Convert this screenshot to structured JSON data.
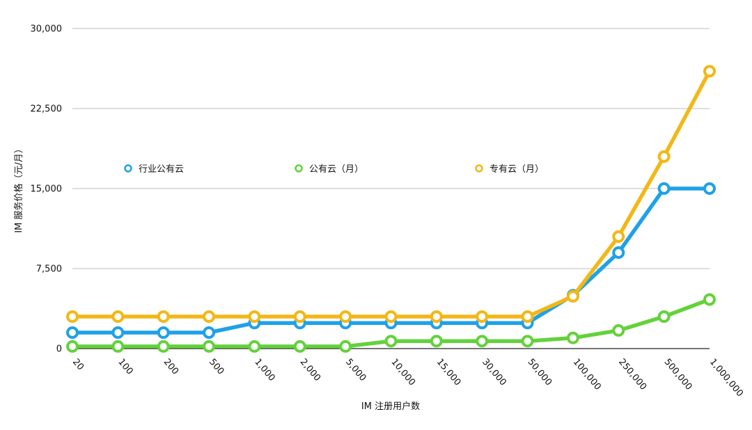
{
  "chart_data": {
    "type": "line",
    "title": "",
    "xlabel": "IM 注册用户数",
    "ylabel": "IM 服务价格（元/月）",
    "categories": [
      "20",
      "100",
      "200",
      "500",
      "1,000",
      "2,000",
      "5,000",
      "10,000",
      "15,000",
      "30,000",
      "50,000",
      "100,000",
      "250,000",
      "500,000",
      "1,000,000"
    ],
    "y_ticks": [
      "0",
      "7,500",
      "15,000",
      "22,500",
      "30,000"
    ],
    "ylim": [
      0,
      30000
    ],
    "grid": true,
    "legend_position": "inside-top",
    "series": [
      {
        "name": "行业公有云",
        "color": "#1fa1e8",
        "values": [
          1500,
          1500,
          1500,
          1500,
          2400,
          2400,
          2400,
          2400,
          2400,
          2400,
          2400,
          5000,
          9000,
          15000,
          15000
        ]
      },
      {
        "name": "公有云（月）",
        "color": "#63d23b",
        "values": [
          200,
          200,
          200,
          200,
          200,
          200,
          200,
          700,
          700,
          700,
          700,
          1000,
          1700,
          3000,
          4600
        ]
      },
      {
        "name": "专有云（月）",
        "color": "#f3b716",
        "values": [
          3000,
          3000,
          3000,
          3000,
          3000,
          3000,
          3000,
          3000,
          3000,
          3000,
          3000,
          4900,
          10500,
          18000,
          26000
        ]
      }
    ]
  }
}
